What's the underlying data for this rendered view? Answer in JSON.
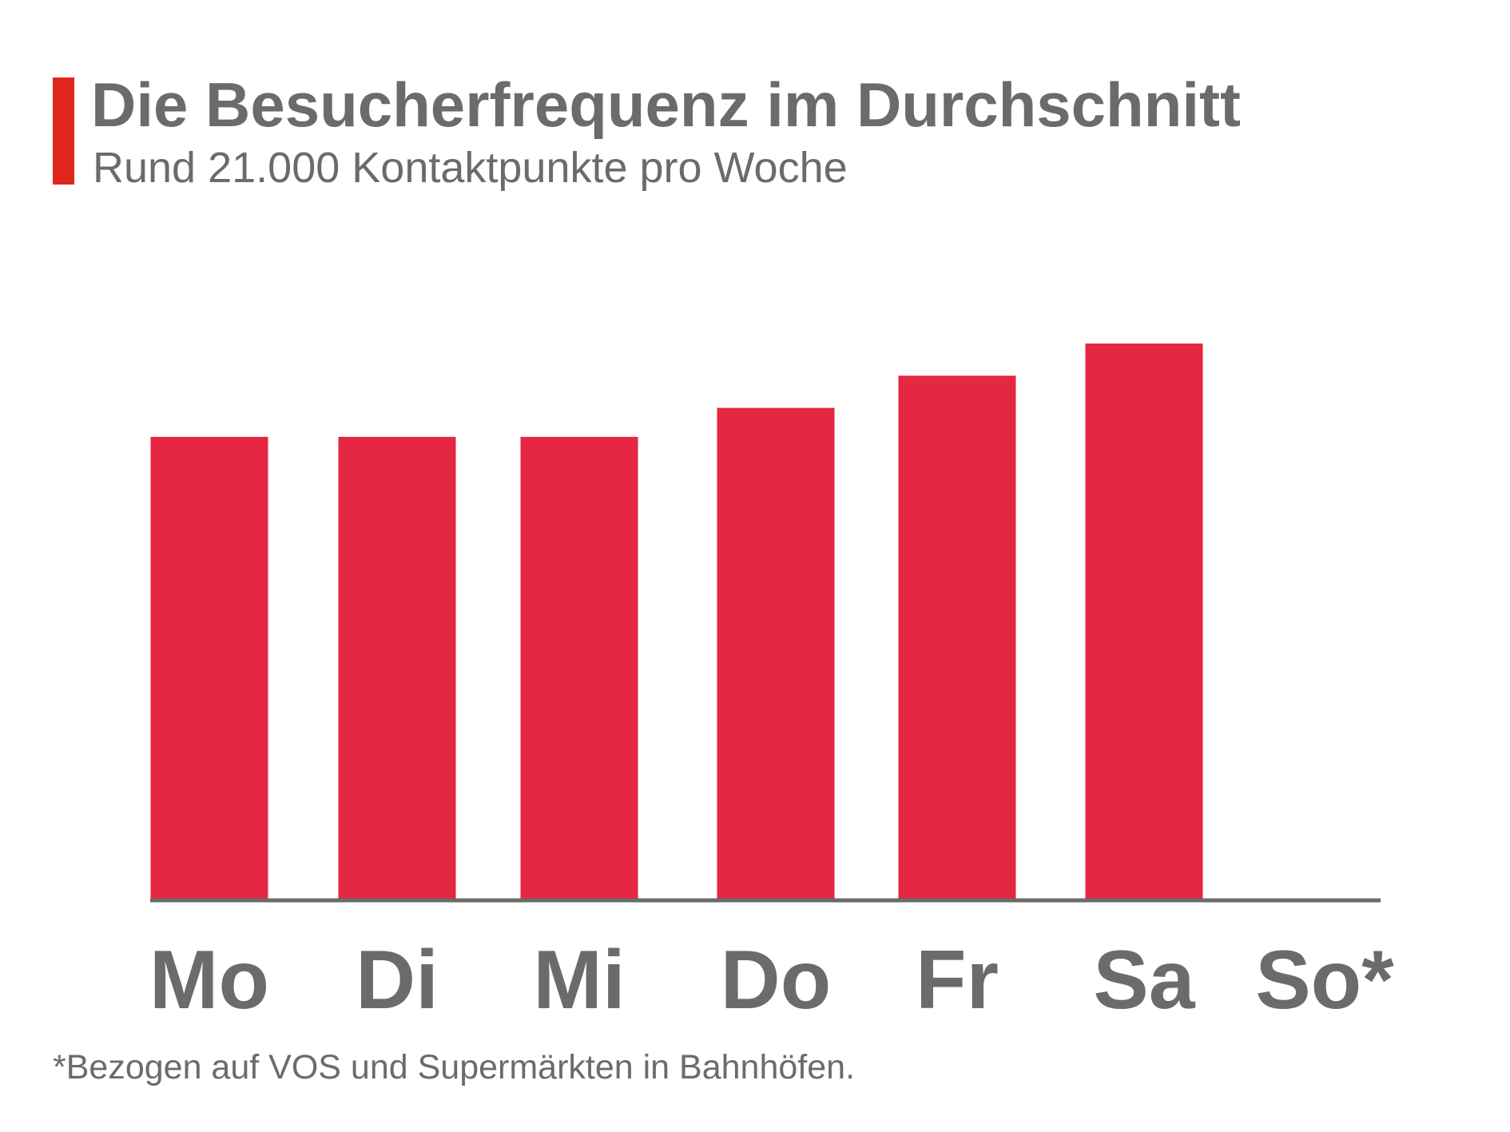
{
  "header": {
    "title": "Die Besucherfrequenz im Durchschnitt",
    "subtitle": "Rund 21.000 Kontaktpunkte pro Woche"
  },
  "footnote": "*Bezogen auf VOS und Supermärkten in Bahnhöfen.",
  "colors": {
    "accent": "#e0261d",
    "bar": "#e52741",
    "text": "#6b6b6b",
    "axis": "#6b6b6b"
  },
  "chart_data": {
    "type": "bar",
    "title": "Die Besucherfrequenz im Durchschnitt",
    "subtitle": "Rund 21.000 Kontaktpunkte pro Woche",
    "categories": [
      "Mo",
      "Di",
      "Mi",
      "Do",
      "Fr",
      "Sa",
      "So*"
    ],
    "values": [
      2870,
      2870,
      2870,
      3050,
      3250,
      3450,
      0
    ],
    "ylim": [
      0,
      3450
    ],
    "grid": false,
    "legend": "none",
    "y_axis_visible": false
  }
}
